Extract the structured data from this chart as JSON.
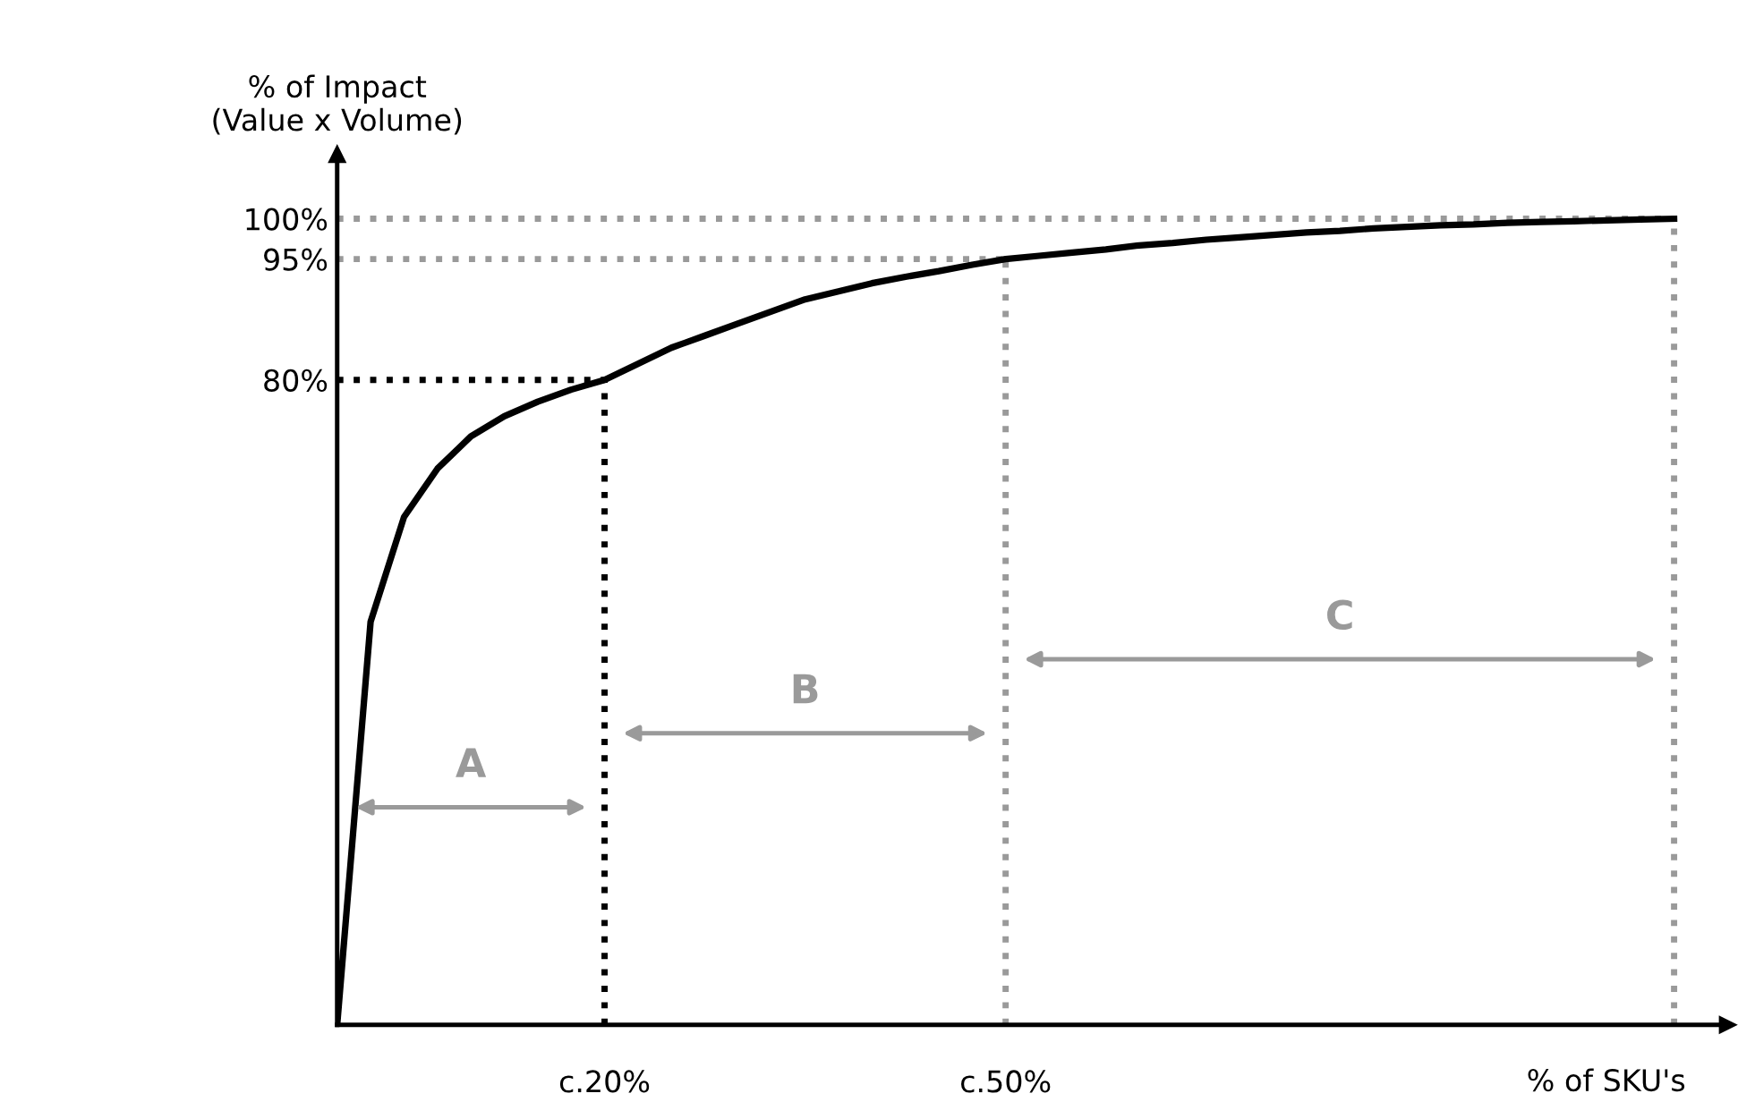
{
  "chart_data": {
    "type": "line",
    "xlabel": "% of SKU's",
    "ylabel": "% of Impact\n(Value x Volume)",
    "categories": [
      null,
      null,
      null,
      null,
      null,
      null,
      null,
      null,
      "c.20%",
      null,
      null,
      null,
      null,
      null,
      null,
      null,
      null,
      null,
      null,
      null,
      "c.50%",
      null,
      null,
      null,
      null,
      null,
      null,
      null,
      null,
      null,
      null,
      null,
      null,
      null,
      null,
      null,
      null,
      null,
      null,
      null,
      null
    ],
    "series": [
      {
        "color": "#000000",
        "values": [
          0,
          50,
          63,
          69,
          73,
          75.5,
          77.3,
          78.8,
          80,
          82,
          84,
          85.5,
          87,
          88.5,
          90,
          91,
          92,
          92.8,
          93.5,
          94.3,
          95,
          95.4,
          95.8,
          96.2,
          96.7,
          97,
          97.4,
          97.7,
          98,
          98.3,
          98.5,
          98.8,
          99,
          99.2,
          99.3,
          99.5,
          99.6,
          99.7,
          99.8,
          99.9,
          100
        ]
      }
    ],
    "ylim": [
      0,
      108
    ],
    "yticks": [
      {
        "value": 80,
        "label": "80%"
      },
      {
        "value": 95,
        "label": "95%"
      },
      {
        "value": 100,
        "label": "100%"
      }
    ],
    "ref_lines": [
      {
        "axis": "y",
        "value": 80,
        "color": "#000000",
        "line_style": "dotted"
      },
      {
        "axis": "y",
        "value": 95,
        "color": "#9a9a9a",
        "line_style": "dotted"
      },
      {
        "axis": "y",
        "value": 100,
        "color": "#9a9a9a",
        "line_style": "dotted"
      }
    ],
    "annotations": [
      "A",
      "B",
      "C"
    ],
    "grid": "x",
    "line_style": "solid",
    "marker": "none"
  }
}
